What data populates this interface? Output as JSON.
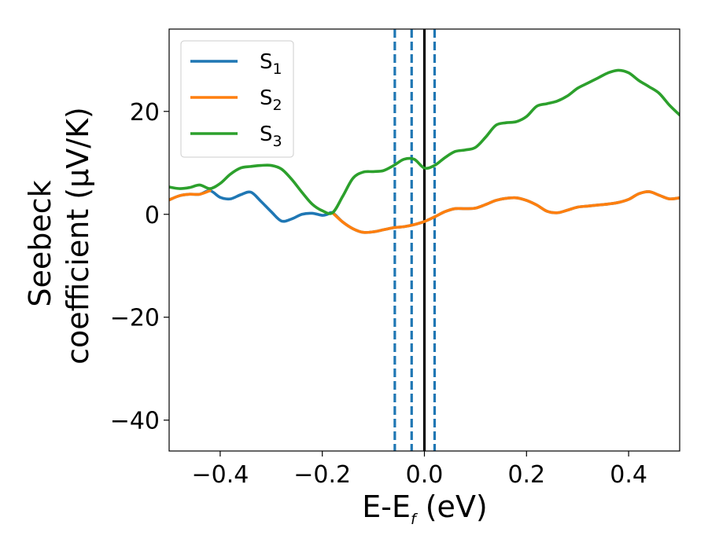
{
  "chart_data": {
    "type": "line",
    "title": "",
    "xlabel": {
      "base": "E-E",
      "sub": "f",
      "tail": " (eV)"
    },
    "ylabel": {
      "line1": "Seebeck",
      "line2": "coefficient  (μV/K)"
    },
    "xlim": [
      -0.5,
      0.5
    ],
    "ylim": [
      -46,
      36
    ],
    "xticks": [
      {
        "value": -0.4,
        "label": "−0.4"
      },
      {
        "value": -0.2,
        "label": "−0.2"
      },
      {
        "value": 0.0,
        "label": "0.0"
      },
      {
        "value": 0.2,
        "label": "0.2"
      },
      {
        "value": 0.4,
        "label": "0.4"
      }
    ],
    "yticks": [
      {
        "value": -40,
        "label": "−40"
      },
      {
        "value": -20,
        "label": "−20"
      },
      {
        "value": 0,
        "label": "0"
      },
      {
        "value": 20,
        "label": "20"
      }
    ],
    "grid": false,
    "legend": {
      "position": "top-left"
    },
    "vlines": [
      {
        "x": -0.058,
        "style": "dashed",
        "color": "#1f77b4"
      },
      {
        "x": -0.025,
        "style": "dashed",
        "color": "#1f77b4"
      },
      {
        "x": 0.0,
        "style": "solid",
        "color": "#000000"
      },
      {
        "x": 0.02,
        "style": "dashed",
        "color": "#1f77b4"
      }
    ],
    "series": [
      {
        "name": "S",
        "sub": "1",
        "color": "#1f77b4",
        "x": [
          -0.5,
          -0.48,
          -0.46,
          -0.44,
          -0.42,
          -0.4,
          -0.38,
          -0.36,
          -0.34,
          -0.32,
          -0.3,
          -0.28,
          -0.26,
          -0.24,
          -0.22,
          -0.2,
          -0.19,
          -0.18,
          -0.16,
          -0.14,
          -0.12,
          -0.1,
          -0.08,
          -0.06,
          -0.04,
          -0.02,
          0.0,
          0.02,
          0.04,
          0.06,
          0.08,
          0.1,
          0.12,
          0.14,
          0.16,
          0.18,
          0.2,
          0.22,
          0.24,
          0.26,
          0.28,
          0.3,
          0.32,
          0.34,
          0.36,
          0.38,
          0.4,
          0.42,
          0.44,
          0.46,
          0.48,
          0.5
        ],
        "y": [
          2.8,
          3.6,
          3.9,
          3.9,
          4.6,
          3.3,
          3.0,
          3.8,
          4.3,
          2.5,
          0.5,
          -1.3,
          -0.9,
          0.0,
          0.2,
          -0.2,
          0.0,
          0.3,
          -1.5,
          -2.8,
          -3.5,
          -3.4,
          -3.0,
          -2.6,
          -2.4,
          -2.0,
          -1.4,
          -0.5,
          0.5,
          1.1,
          1.1,
          1.2,
          1.9,
          2.7,
          3.1,
          3.2,
          2.7,
          1.8,
          0.6,
          0.3,
          0.8,
          1.4,
          1.6,
          1.8,
          2.0,
          2.3,
          2.9,
          4.0,
          4.4,
          3.7,
          3.0,
          3.2
        ]
      },
      {
        "name": "S",
        "sub": "2",
        "color": "#ff7f0e",
        "x": [
          -0.5,
          -0.48,
          -0.46,
          -0.44,
          -0.42,
          -0.4,
          -0.38,
          -0.36,
          -0.34,
          -0.32,
          -0.3,
          -0.28,
          -0.26,
          -0.24,
          -0.22,
          -0.2,
          -0.18,
          -0.16,
          -0.14,
          -0.12,
          -0.1,
          -0.08,
          -0.06,
          -0.04,
          -0.02,
          0.0,
          0.02,
          0.04,
          0.06,
          0.08,
          0.1,
          0.12,
          0.14,
          0.16,
          0.18,
          0.2,
          0.22,
          0.24,
          0.26,
          0.28,
          0.3,
          0.32,
          0.34,
          0.36,
          0.38,
          0.4,
          0.42,
          0.44,
          0.46,
          0.48,
          0.5
        ],
        "y": [
          2.8,
          3.6,
          3.9,
          3.9,
          4.6,
          null,
          null,
          null,
          null,
          null,
          null,
          null,
          null,
          null,
          null,
          null,
          0.3,
          -1.5,
          -2.8,
          -3.5,
          -3.4,
          -3.0,
          -2.6,
          -2.4,
          -2.0,
          -1.4,
          -0.5,
          0.5,
          1.1,
          1.1,
          1.2,
          1.9,
          2.7,
          3.1,
          3.2,
          2.7,
          1.8,
          0.6,
          0.3,
          0.8,
          1.4,
          1.6,
          1.8,
          2.0,
          2.3,
          2.9,
          4.0,
          4.4,
          3.7,
          3.0,
          3.2
        ]
      },
      {
        "name": "S",
        "sub": "3",
        "color": "#2ca02c",
        "x": [
          -0.5,
          -0.48,
          -0.46,
          -0.44,
          -0.42,
          -0.4,
          -0.38,
          -0.36,
          -0.34,
          -0.32,
          -0.3,
          -0.28,
          -0.26,
          -0.24,
          -0.22,
          -0.2,
          -0.18,
          -0.16,
          -0.14,
          -0.12,
          -0.1,
          -0.08,
          -0.06,
          -0.04,
          -0.02,
          0.0,
          0.02,
          0.04,
          0.06,
          0.08,
          0.1,
          0.12,
          0.14,
          0.16,
          0.18,
          0.2,
          0.22,
          0.24,
          0.26,
          0.28,
          0.3,
          0.32,
          0.34,
          0.36,
          0.38,
          0.4,
          0.42,
          0.44,
          0.46,
          0.48,
          0.5
        ],
        "y": [
          5.3,
          5.0,
          5.2,
          5.7,
          5.0,
          6.0,
          7.8,
          9.0,
          9.3,
          9.5,
          9.5,
          8.8,
          6.8,
          4.3,
          2.0,
          0.7,
          0.3,
          3.5,
          7.0,
          8.2,
          8.3,
          8.5,
          9.5,
          10.7,
          10.7,
          9.0,
          9.5,
          11.0,
          12.2,
          12.5,
          13.0,
          15.0,
          17.3,
          17.8,
          18.0,
          19.0,
          21.0,
          21.5,
          22.0,
          23.0,
          24.5,
          25.5,
          26.5,
          27.5,
          28.0,
          27.5,
          26.0,
          24.8,
          23.5,
          21.2,
          19.3
        ]
      }
    ]
  }
}
